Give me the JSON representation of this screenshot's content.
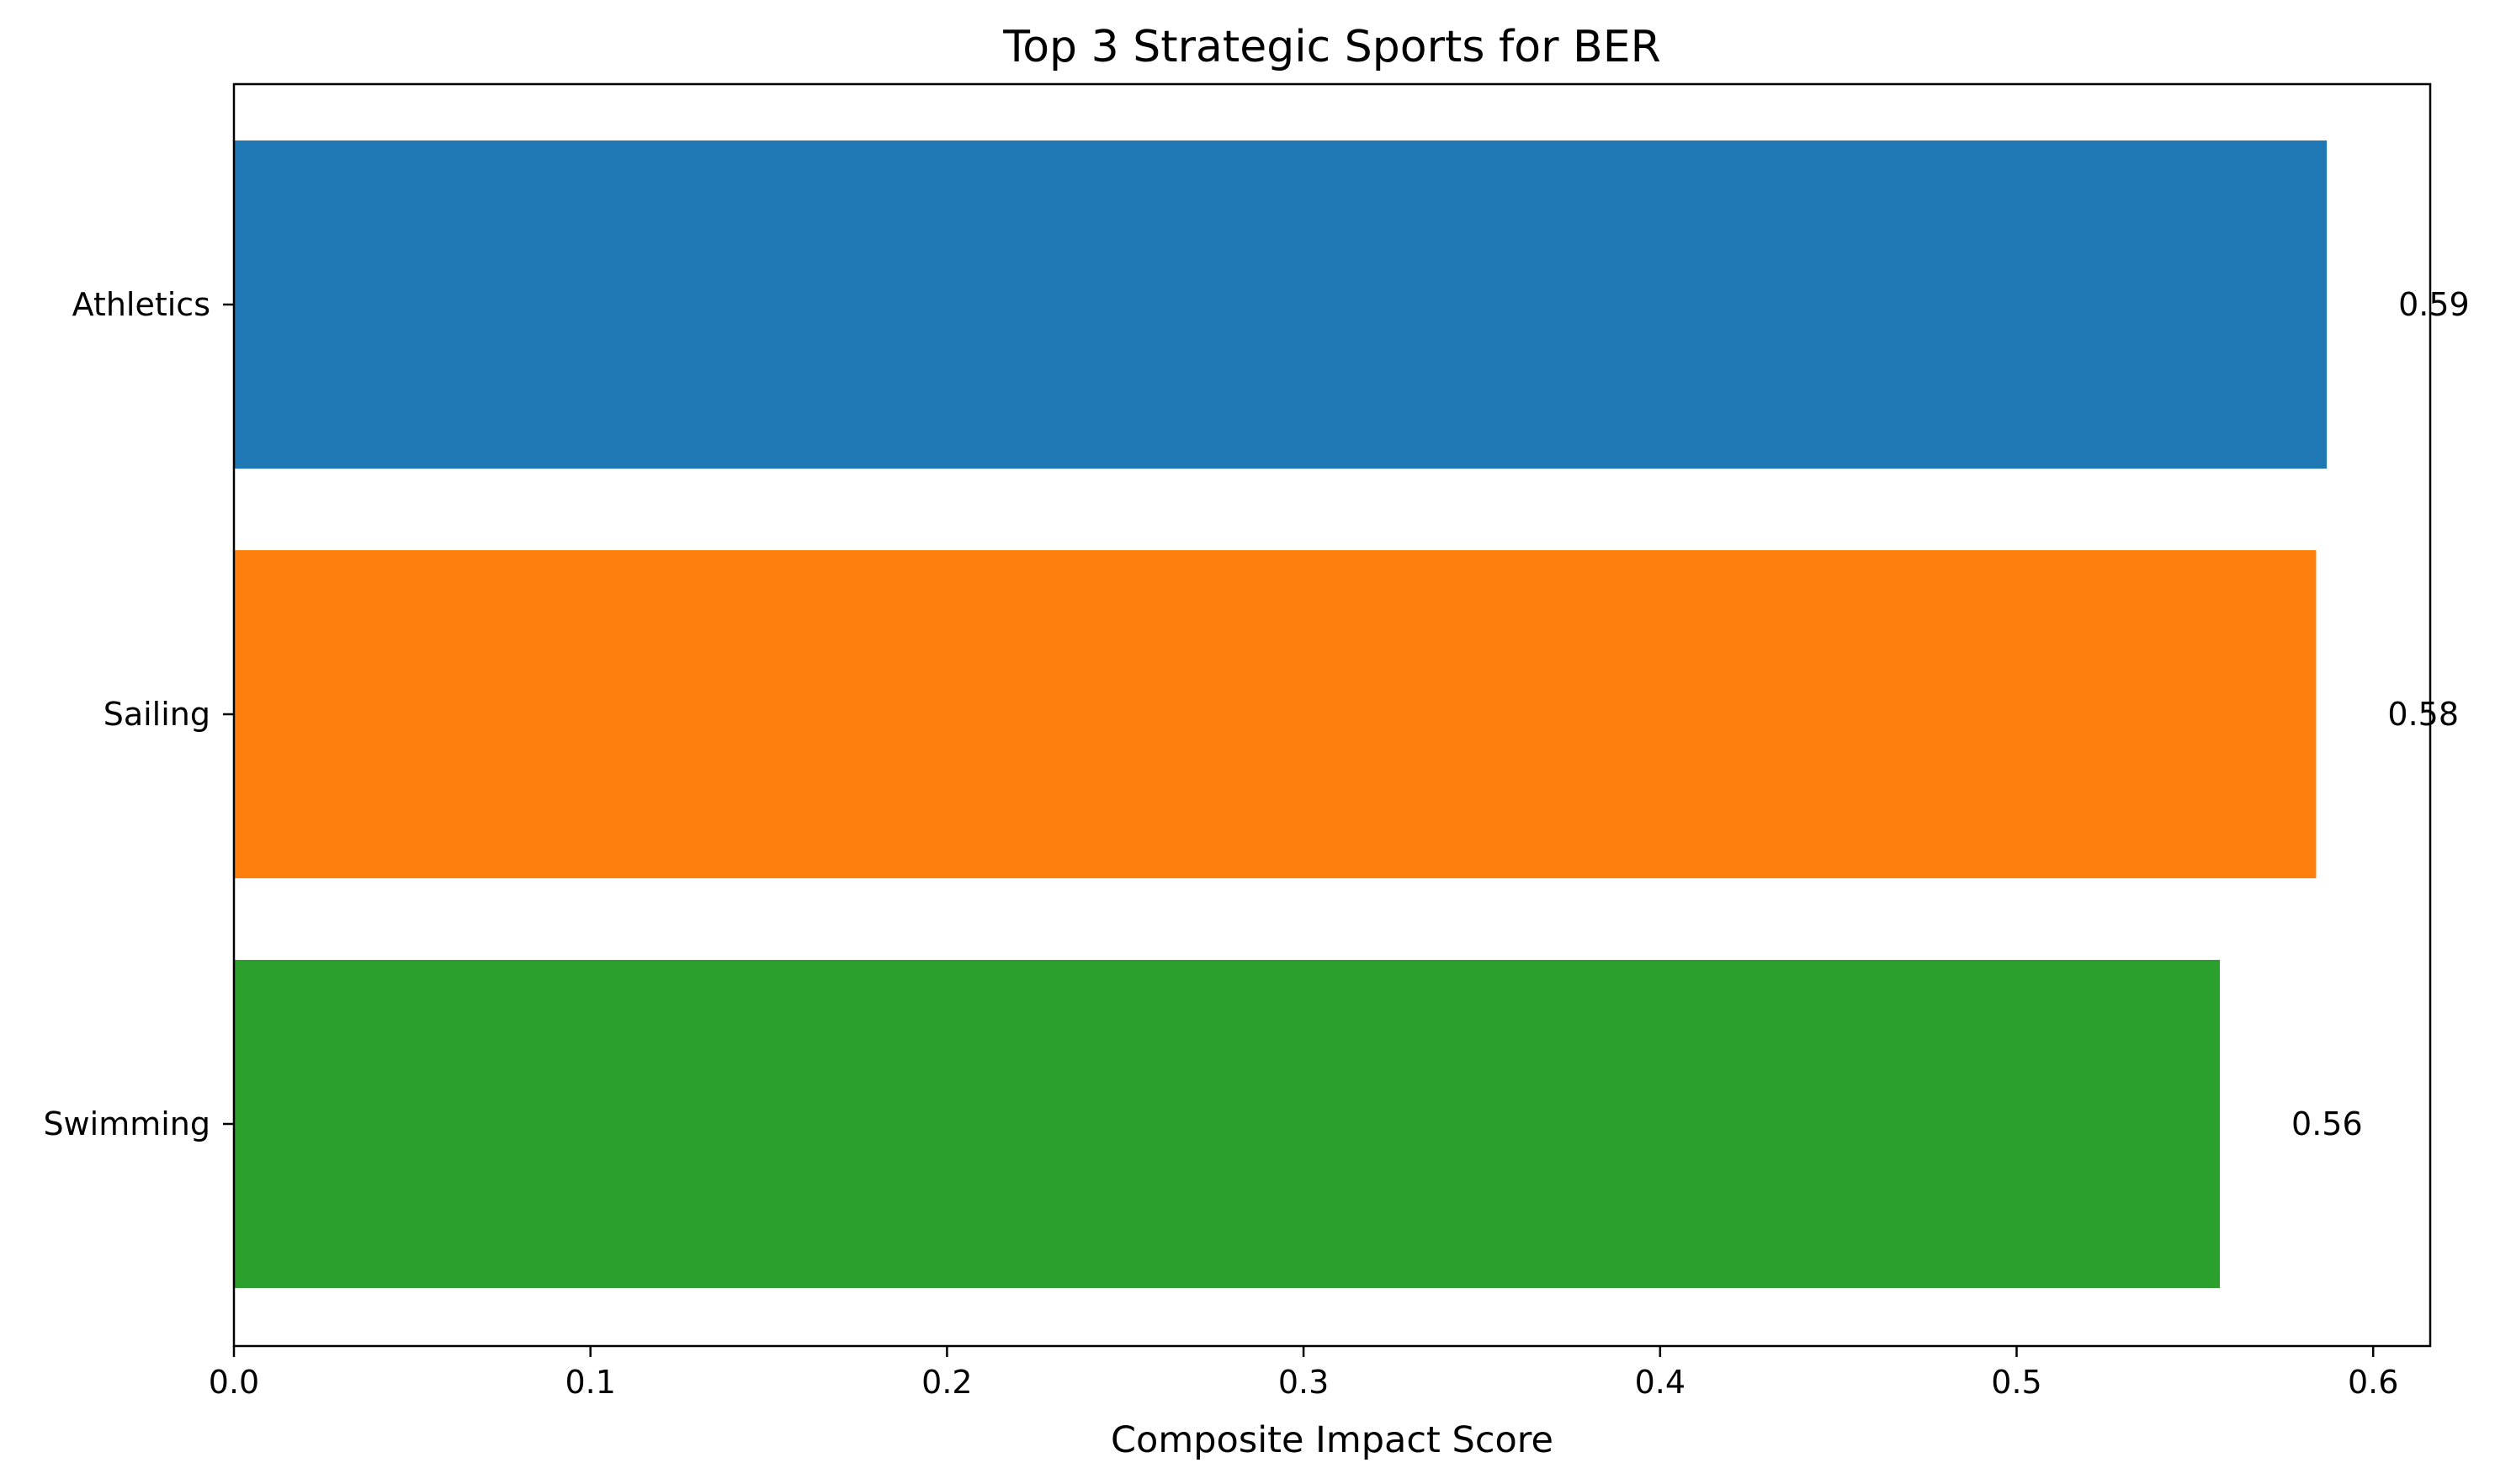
{
  "chart_data": {
    "type": "bar",
    "orientation": "horizontal",
    "title": "Top 3 Strategic Sports for BER",
    "xlabel": "Composite Impact Score",
    "ylabel": "",
    "categories": [
      "Athletics",
      "Sailing",
      "Swimming"
    ],
    "values": [
      0.587,
      0.584,
      0.557
    ],
    "data_labels": [
      "0.59",
      "0.58",
      "0.56"
    ],
    "colors": [
      "#1f77b4",
      "#ff7f0e",
      "#2ca02c"
    ],
    "xlim": [
      0,
      0.616
    ],
    "xticks": [
      0.0,
      0.1,
      0.2,
      0.3,
      0.4,
      0.5,
      0.6
    ],
    "xtick_labels": [
      "0.0",
      "0.1",
      "0.2",
      "0.3",
      "0.4",
      "0.5",
      "0.6"
    ],
    "grid": false,
    "legend": "none"
  }
}
